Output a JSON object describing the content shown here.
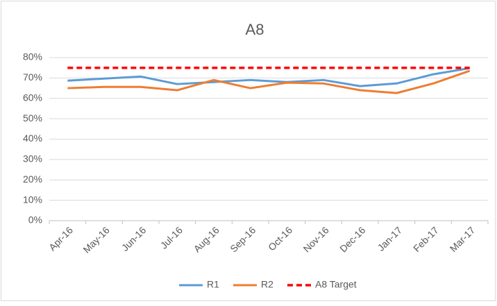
{
  "chart_data": {
    "type": "line",
    "title": "A8",
    "categories": [
      "Apr-16",
      "May-16",
      "Jun-16",
      "Jul-16",
      "Aug-16",
      "Sep-16",
      "Oct-16",
      "Nov-16",
      "Dec-16",
      "Jan-17",
      "Feb-17",
      "Mar-17"
    ],
    "series": [
      {
        "name": "R1",
        "color": "#5b9bd5",
        "dashed": false,
        "values": [
          68.7,
          69.7,
          70.7,
          67,
          68,
          69,
          68,
          69,
          66,
          67.3,
          71.8,
          74.8
        ]
      },
      {
        "name": "R2",
        "color": "#ed7d31",
        "dashed": false,
        "values": [
          65,
          65.6,
          65.6,
          64,
          69,
          65,
          67.7,
          67.3,
          64,
          62.6,
          67.3,
          73.5
        ]
      },
      {
        "name": "A8 Target",
        "color": "#ff0000",
        "dashed": true,
        "values": [
          75,
          75,
          75,
          75,
          75,
          75,
          75,
          75,
          75,
          75,
          75,
          75
        ]
      }
    ],
    "ylim": [
      0,
      80
    ],
    "yticks": [
      {
        "value": 0,
        "label": "0%"
      },
      {
        "value": 10,
        "label": "10%"
      },
      {
        "value": 20,
        "label": "20%"
      },
      {
        "value": 30,
        "label": "30%"
      },
      {
        "value": 40,
        "label": "40%"
      },
      {
        "value": 50,
        "label": "50%"
      },
      {
        "value": 60,
        "label": "60%"
      },
      {
        "value": 70,
        "label": "70%"
      },
      {
        "value": 80,
        "label": "80%"
      }
    ],
    "grid": true,
    "legend": "bottom"
  }
}
